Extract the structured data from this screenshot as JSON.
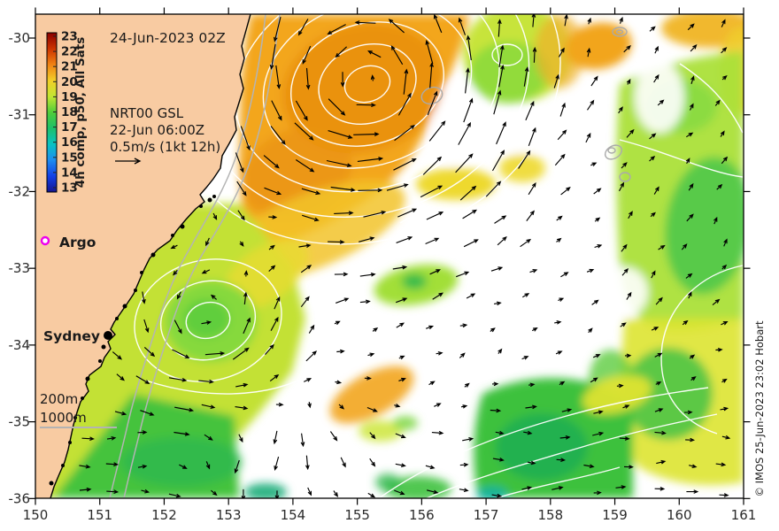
{
  "title": "24-Jun-2023 02Z",
  "legend": {
    "product": "NRT00 GSL",
    "time": "22-Jun 06:00Z",
    "scale": "0.5m/s (1kt 12h)"
  },
  "colorbar": {
    "label": "4h comp, p50, All Sats",
    "ticks": [
      23,
      22,
      21,
      20,
      19,
      18,
      17,
      16,
      15,
      14,
      13
    ],
    "colors_top_to_bottom": [
      "#8a0000",
      "#cc3300",
      "#f08214",
      "#f2ce28",
      "#c2e632",
      "#50cc3a",
      "#1ec06a",
      "#0ac2c2",
      "#1e8cf0",
      "#1440e6",
      "#151590"
    ]
  },
  "markers": {
    "argo": {
      "label": "Argo",
      "color": "#ee00ee"
    },
    "sydney": {
      "label": "Sydney"
    }
  },
  "depth_legend": {
    "items": [
      "200m",
      "1000m"
    ],
    "line_color": "#b3b3b3"
  },
  "axes": {
    "x_ticks": [
      150,
      151,
      152,
      153,
      154,
      155,
      156,
      157,
      158,
      159,
      160,
      161
    ],
    "y_ticks": [
      -30,
      -31,
      -32,
      -33,
      -34,
      -35,
      -36
    ]
  },
  "attribution": "© IMOS 25-Jun-2023 23:02 Hobart"
}
